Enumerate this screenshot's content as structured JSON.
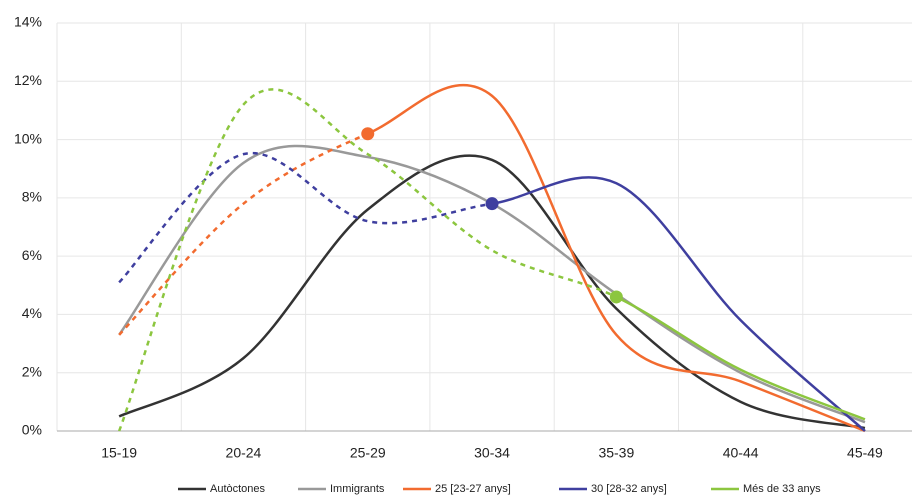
{
  "chart_data": {
    "type": "line",
    "categories": [
      "15-19",
      "20-24",
      "25-29",
      "30-34",
      "35-39",
      "40-44",
      "45-49"
    ],
    "series": [
      {
        "name": "Autòctones",
        "color": "#333333",
        "values": [
          0.5,
          2.5,
          7.6,
          9.3,
          4.2,
          1.0,
          0.1
        ]
      },
      {
        "name": "Immigrants",
        "color": "#999999",
        "values": [
          3.3,
          9.2,
          9.4,
          7.8,
          4.7,
          2.0,
          0.3
        ]
      },
      {
        "name": "25 [23-27 anys]",
        "color": "#f26b2f",
        "values": [
          3.3,
          7.8,
          10.2,
          11.5,
          3.3,
          1.7,
          0.0
        ],
        "dashed_until": 2
      },
      {
        "name": "30 [28-32 anys]",
        "color": "#3f3f9f",
        "values": [
          5.1,
          9.5,
          7.2,
          7.8,
          8.5,
          3.8,
          0.0
        ],
        "dashed_until": 3
      },
      {
        "name": "Més de 33 anys",
        "color": "#8cc63f",
        "values": [
          0.0,
          11.2,
          9.5,
          6.2,
          4.6,
          2.1,
          0.4
        ],
        "dashed_until": 4
      }
    ],
    "ylim": [
      0,
      14
    ],
    "yticks": [
      {
        "value": 0,
        "label": "0%"
      },
      {
        "value": 2,
        "label": "2%"
      },
      {
        "value": 4,
        "label": "4%"
      },
      {
        "value": 6,
        "label": "6%"
      },
      {
        "value": 8,
        "label": "8%"
      },
      {
        "value": 10,
        "label": "10%"
      },
      {
        "value": 12,
        "label": "12%"
      },
      {
        "value": 14,
        "label": "14%"
      }
    ],
    "grid": true,
    "legend": "bottom"
  }
}
